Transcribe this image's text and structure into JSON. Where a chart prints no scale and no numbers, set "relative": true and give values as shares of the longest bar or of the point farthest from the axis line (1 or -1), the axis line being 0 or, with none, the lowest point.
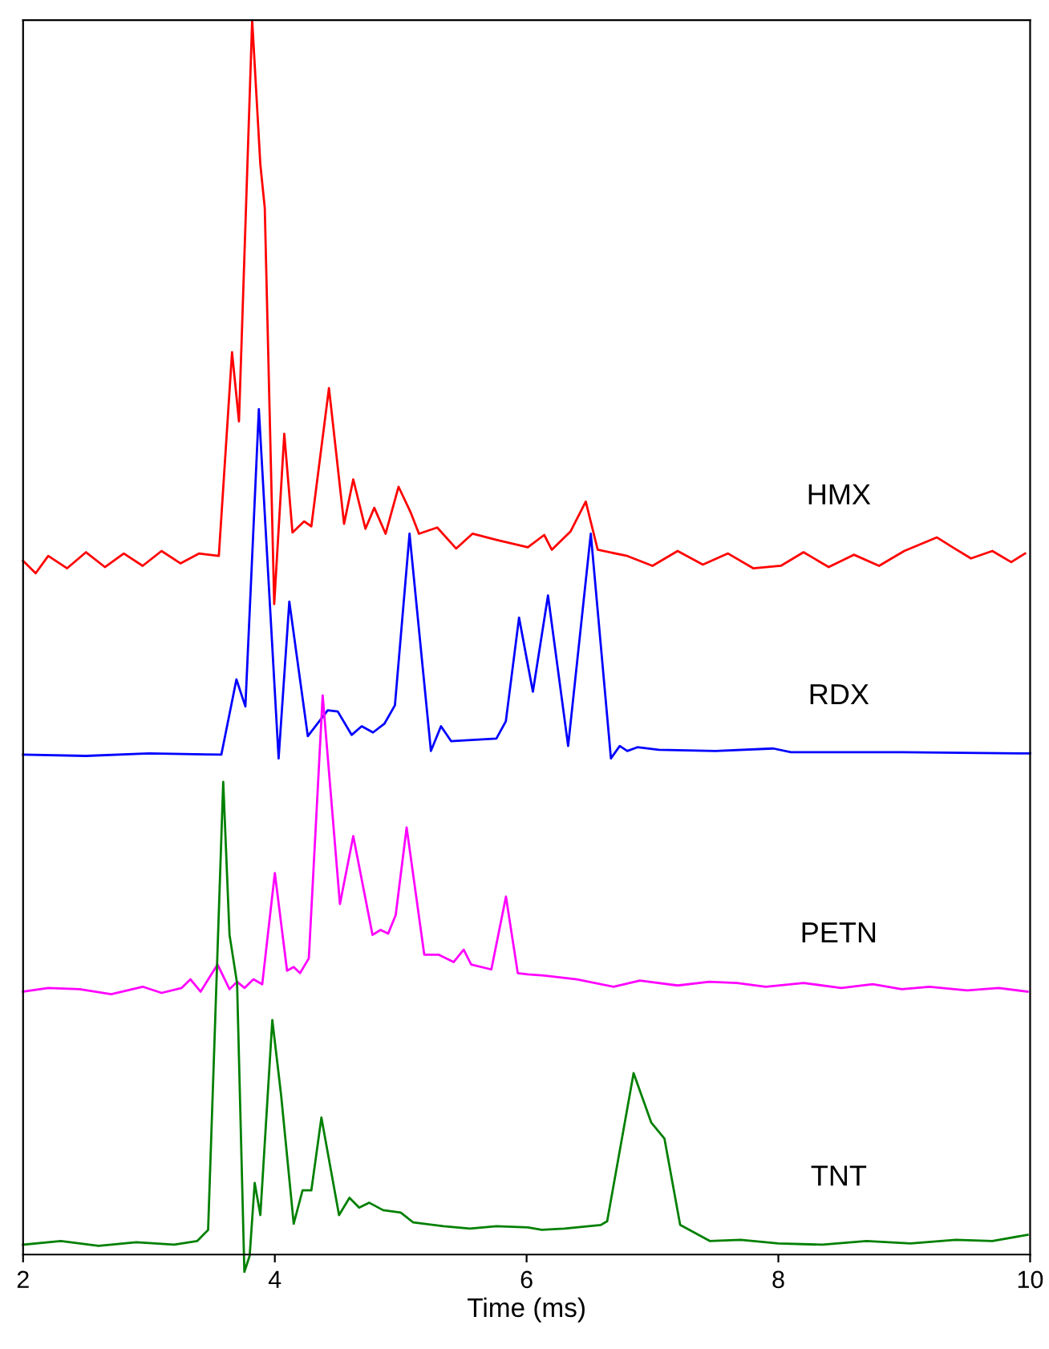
{
  "chart_data": {
    "type": "line",
    "xlabel": "Time (ms)",
    "relative": true,
    "xlim": [
      2,
      10
    ],
    "xticks": [
      2,
      4,
      6,
      8,
      10
    ],
    "tick_labels": "x",
    "grid": false,
    "legend": false,
    "line_style": "solid",
    "marker": "none",
    "series": [
      {
        "name": "HMX",
        "color": "#ff0000",
        "x": [
          2.0,
          2.1,
          2.2,
          2.35,
          2.5,
          2.65,
          2.8,
          2.95,
          3.1,
          3.25,
          3.4,
          3.555,
          3.66,
          3.715,
          3.82,
          3.885,
          3.92,
          3.995,
          4.075,
          4.14,
          4.233,
          4.29,
          4.43,
          4.55,
          4.623,
          4.72,
          4.79,
          4.88,
          4.983,
          5.08,
          5.145,
          5.29,
          5.44,
          5.57,
          5.76,
          6.01,
          6.14,
          6.2,
          6.35,
          6.47,
          6.565,
          6.8,
          7.0,
          7.2,
          7.4,
          7.6,
          7.8,
          8.02,
          8.2,
          8.4,
          8.6,
          8.8,
          9.0,
          9.26,
          9.4,
          9.53,
          9.7,
          9.85,
          9.96
        ],
        "values": [
          0.562,
          0.552,
          0.566,
          0.556,
          0.569,
          0.557,
          0.568,
          0.558,
          0.57,
          0.56,
          0.568,
          0.566,
          0.731,
          0.675,
          1.0,
          0.883,
          0.848,
          0.527,
          0.665,
          0.585,
          0.594,
          0.59,
          0.702,
          0.592,
          0.628,
          0.588,
          0.605,
          0.584,
          0.622,
          0.601,
          0.584,
          0.589,
          0.572,
          0.584,
          0.579,
          0.573,
          0.583,
          0.571,
          0.586,
          0.61,
          0.571,
          0.566,
          0.558,
          0.57,
          0.559,
          0.568,
          0.556,
          0.558,
          0.569,
          0.557,
          0.567,
          0.558,
          0.57,
          0.581,
          0.572,
          0.564,
          0.57,
          0.561,
          0.568
        ]
      },
      {
        "name": "RDX",
        "color": "#0000ff",
        "x": [
          2.0,
          2.5,
          3.0,
          3.575,
          3.695,
          3.766,
          3.873,
          4.03,
          4.115,
          4.262,
          4.42,
          4.5,
          4.61,
          4.69,
          4.78,
          4.87,
          4.954,
          5.07,
          5.24,
          5.32,
          5.4,
          5.76,
          5.835,
          5.94,
          6.05,
          6.17,
          6.33,
          6.51,
          6.67,
          6.74,
          6.8,
          6.88,
          7.05,
          7.5,
          7.96,
          8.1,
          8.98,
          10.0
        ],
        "values": [
          0.405,
          0.404,
          0.406,
          0.405,
          0.466,
          0.444,
          0.685,
          0.402,
          0.529,
          0.42,
          0.441,
          0.44,
          0.421,
          0.428,
          0.423,
          0.43,
          0.445,
          0.584,
          0.408,
          0.428,
          0.416,
          0.418,
          0.432,
          0.516,
          0.456,
          0.534,
          0.412,
          0.584,
          0.402,
          0.412,
          0.408,
          0.411,
          0.409,
          0.408,
          0.41,
          0.407,
          0.407,
          0.406
        ]
      },
      {
        "name": "PETN",
        "color": "#ff00ff",
        "x": [
          2.0,
          2.2,
          2.45,
          2.7,
          2.95,
          3.1,
          3.26,
          3.33,
          3.41,
          3.545,
          3.64,
          3.7,
          3.76,
          3.83,
          3.9,
          4.0,
          4.097,
          4.15,
          4.2,
          4.27,
          4.38,
          4.517,
          4.623,
          4.776,
          4.84,
          4.9,
          4.96,
          5.047,
          5.187,
          5.3,
          5.42,
          5.5,
          5.56,
          5.72,
          5.836,
          5.93,
          6.01,
          6.14,
          6.4,
          6.69,
          6.9,
          7.2,
          7.45,
          7.67,
          7.9,
          8.2,
          8.5,
          8.75,
          8.98,
          9.2,
          9.5,
          9.75,
          9.98
        ],
        "values": [
          0.213,
          0.216,
          0.215,
          0.211,
          0.217,
          0.212,
          0.216,
          0.223,
          0.213,
          0.235,
          0.215,
          0.221,
          0.216,
          0.223,
          0.219,
          0.309,
          0.23,
          0.233,
          0.228,
          0.24,
          0.453,
          0.284,
          0.339,
          0.259,
          0.263,
          0.26,
          0.275,
          0.346,
          0.243,
          0.243,
          0.237,
          0.247,
          0.235,
          0.231,
          0.29,
          0.228,
          0.227,
          0.226,
          0.223,
          0.217,
          0.222,
          0.218,
          0.221,
          0.22,
          0.217,
          0.22,
          0.216,
          0.219,
          0.215,
          0.217,
          0.214,
          0.216,
          0.213
        ]
      },
      {
        "name": "TNT",
        "color": "#008000",
        "x": [
          2.0,
          2.3,
          2.6,
          2.9,
          3.2,
          3.384,
          3.47,
          3.59,
          3.64,
          3.7,
          3.758,
          3.8,
          3.84,
          3.885,
          3.98,
          4.05,
          4.15,
          4.22,
          4.29,
          4.37,
          4.51,
          4.593,
          4.67,
          4.75,
          4.86,
          5.0,
          5.1,
          5.34,
          5.55,
          5.76,
          6.01,
          6.12,
          6.3,
          6.59,
          6.64,
          6.85,
          6.99,
          7.095,
          7.22,
          7.455,
          7.7,
          8.0,
          8.35,
          8.7,
          9.05,
          9.41,
          9.7,
          9.98
        ],
        "values": [
          0.008,
          0.011,
          0.007,
          0.01,
          0.008,
          0.011,
          0.02,
          0.383,
          0.259,
          0.22,
          -0.014,
          -0.001,
          0.058,
          0.032,
          0.19,
          0.129,
          0.025,
          0.052,
          0.052,
          0.111,
          0.032,
          0.046,
          0.038,
          0.042,
          0.036,
          0.034,
          0.026,
          0.023,
          0.021,
          0.023,
          0.022,
          0.02,
          0.021,
          0.024,
          0.027,
          0.147,
          0.107,
          0.094,
          0.024,
          0.011,
          0.012,
          0.009,
          0.008,
          0.011,
          0.009,
          0.012,
          0.011,
          0.016
        ]
      }
    ]
  }
}
